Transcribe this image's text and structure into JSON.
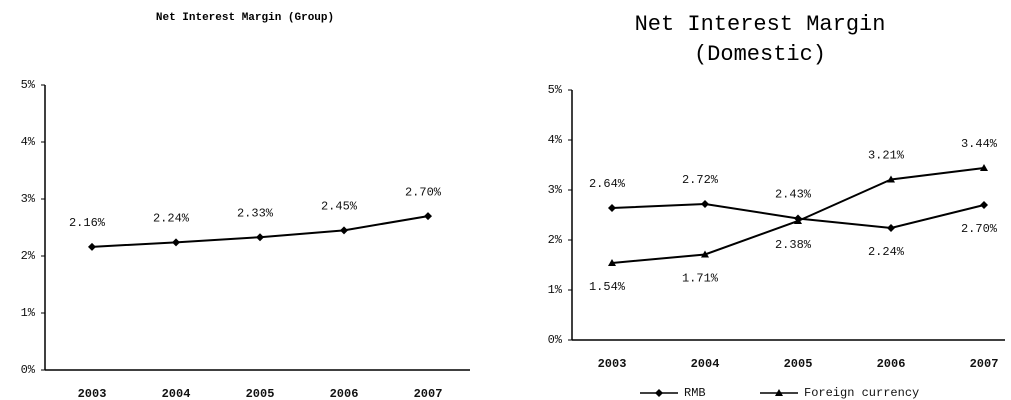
{
  "chart_data": [
    {
      "type": "line",
      "title": "Net Interest Margin (Group)",
      "categories": [
        "2003",
        "2004",
        "2005",
        "2006",
        "2007"
      ],
      "series": [
        {
          "name": null,
          "color": "#000000",
          "values": [
            2.16,
            2.24,
            2.33,
            2.45,
            2.7
          ],
          "value_labels": [
            "2.16%",
            "2.24%",
            "2.33%",
            "2.45%",
            "2.70%"
          ]
        }
      ],
      "ylim": [
        0,
        5
      ],
      "yticks": [
        {
          "value": 0,
          "label": "0%"
        },
        {
          "value": 1,
          "label": "1%"
        },
        {
          "value": 2,
          "label": "2%"
        },
        {
          "value": 3,
          "label": "3%"
        },
        {
          "value": 4,
          "label": "4%"
        },
        {
          "value": 5,
          "label": "5%"
        }
      ],
      "grid": false
    },
    {
      "type": "line",
      "title": "Net Interest Margin (Domestic)",
      "categories": [
        "2003",
        "2004",
        "2005",
        "2006",
        "2007"
      ],
      "series": [
        {
          "name": "RMB",
          "color": "#000000",
          "values": [
            2.64,
            2.72,
            2.43,
            2.24,
            2.7
          ],
          "value_labels": [
            "2.64%",
            "2.72%",
            "2.43%",
            "2.24%",
            "2.70%"
          ]
        },
        {
          "name": "Foreign currency",
          "color": "#000000",
          "values": [
            1.54,
            1.71,
            2.38,
            3.21,
            3.44
          ],
          "value_labels": [
            "1.54%",
            "1.71%",
            "2.38%",
            "3.21%",
            "3.44%"
          ]
        }
      ],
      "ylim": [
        0,
        5
      ],
      "yticks": [
        {
          "value": 0,
          "label": "0%"
        },
        {
          "value": 1,
          "label": "1%"
        },
        {
          "value": 2,
          "label": "2%"
        },
        {
          "value": 3,
          "label": "3%"
        },
        {
          "value": 4,
          "label": "4%"
        },
        {
          "value": 5,
          "label": "5%"
        }
      ],
      "grid": false,
      "legend": "bottom"
    }
  ]
}
